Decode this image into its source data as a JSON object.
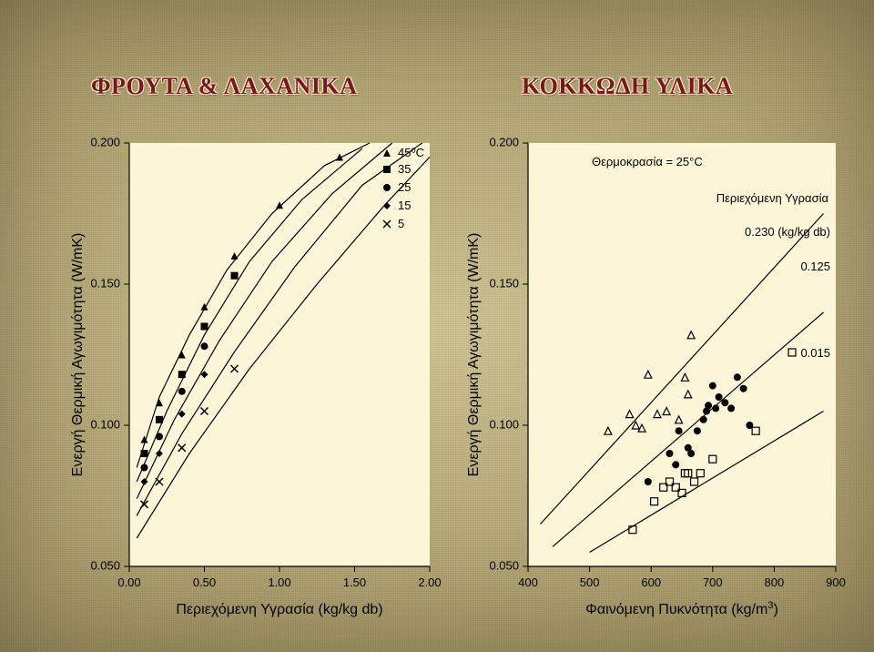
{
  "headings": {
    "left": "ΦΡΟΥΤΑ & ΛΑΧΑΝΙΚΑ",
    "right": "ΚΟΚΚΩΔΗ ΥΛΙΚΑ"
  },
  "left_chart": {
    "type": "scatter+line",
    "background_color": "#fcf5d8",
    "text_color": "#111111",
    "axis_color": "#000000",
    "ylabel": "Ενεργή Θερμική Αγωγιμότητα (W/mK)",
    "xlabel": "Περιεχόμενη Υγρασία (kg/kg db)",
    "label_fontsize": 16,
    "xlim": [
      0,
      2.0
    ],
    "ylim": [
      0.05,
      0.2
    ],
    "xticks": [
      0.0,
      0.5,
      1.0,
      1.5,
      2.0
    ],
    "xtick_labels": [
      "0.00",
      "0.50",
      "1.00",
      "1.50",
      "2.00"
    ],
    "yticks": [
      0.05,
      0.1,
      0.15,
      0.2
    ],
    "ytick_labels": [
      "0.050",
      "0.100",
      "0.150",
      "0.200"
    ],
    "tick_fontsize": 13,
    "legend": {
      "title": "45⁰C",
      "items": [
        "35",
        "25",
        "15",
        "5"
      ],
      "fontsize": 13
    },
    "series": [
      {
        "label": "45",
        "marker": "triangle",
        "color": "#000000",
        "points": [
          [
            0.1,
            0.095
          ],
          [
            0.2,
            0.108
          ],
          [
            0.35,
            0.125
          ],
          [
            0.5,
            0.142
          ],
          [
            0.7,
            0.16
          ],
          [
            1.0,
            0.178
          ],
          [
            1.4,
            0.195
          ]
        ],
        "curve": [
          [
            0.05,
            0.085
          ],
          [
            0.2,
            0.11
          ],
          [
            0.4,
            0.132
          ],
          [
            0.65,
            0.155
          ],
          [
            0.95,
            0.175
          ],
          [
            1.3,
            0.192
          ],
          [
            1.6,
            0.2
          ]
        ]
      },
      {
        "label": "35",
        "marker": "square",
        "color": "#000000",
        "points": [
          [
            0.1,
            0.09
          ],
          [
            0.2,
            0.102
          ],
          [
            0.35,
            0.118
          ],
          [
            0.5,
            0.135
          ],
          [
            0.7,
            0.153
          ]
        ],
        "curve": [
          [
            0.05,
            0.08
          ],
          [
            0.25,
            0.105
          ],
          [
            0.5,
            0.132
          ],
          [
            0.8,
            0.158
          ],
          [
            1.15,
            0.18
          ],
          [
            1.55,
            0.198
          ]
        ]
      },
      {
        "label": "25",
        "marker": "circle",
        "color": "#000000",
        "points": [
          [
            0.1,
            0.085
          ],
          [
            0.2,
            0.096
          ],
          [
            0.35,
            0.112
          ],
          [
            0.5,
            0.128
          ]
        ],
        "curve": [
          [
            0.05,
            0.074
          ],
          [
            0.3,
            0.102
          ],
          [
            0.6,
            0.13
          ],
          [
            0.95,
            0.158
          ],
          [
            1.35,
            0.182
          ],
          [
            1.75,
            0.2
          ]
        ]
      },
      {
        "label": "15",
        "marker": "diamond",
        "color": "#000000",
        "points": [
          [
            0.1,
            0.08
          ],
          [
            0.2,
            0.09
          ],
          [
            0.35,
            0.104
          ],
          [
            0.5,
            0.118
          ]
        ],
        "curve": [
          [
            0.05,
            0.068
          ],
          [
            0.35,
            0.097
          ],
          [
            0.7,
            0.126
          ],
          [
            1.1,
            0.156
          ],
          [
            1.55,
            0.185
          ],
          [
            1.95,
            0.2
          ]
        ]
      },
      {
        "label": "5",
        "marker": "x",
        "color": "#000000",
        "points": [
          [
            0.1,
            0.072
          ],
          [
            0.2,
            0.08
          ],
          [
            0.35,
            0.092
          ],
          [
            0.5,
            0.105
          ],
          [
            0.7,
            0.12
          ]
        ],
        "curve": [
          [
            0.05,
            0.06
          ],
          [
            0.4,
            0.09
          ],
          [
            0.8,
            0.12
          ],
          [
            1.25,
            0.15
          ],
          [
            1.7,
            0.178
          ],
          [
            2.0,
            0.195
          ]
        ]
      }
    ]
  },
  "right_chart": {
    "type": "scatter+line",
    "background_color": "#fcf5d8",
    "text_color": "#111111",
    "axis_color": "#000000",
    "ylabel": "Ενεργή Θερμική Αγωγιμότητα (W/mK)",
    "xlabel": "Φαινόμενη Πυκνότητα (kg/m³)",
    "temp_label": "Θερμοκρασία = 25°C",
    "moisture_label": "Περιεχόμενη Υγρασία",
    "label_fontsize": 16,
    "tick_fontsize": 13,
    "xlim": [
      400,
      900
    ],
    "ylim": [
      0.05,
      0.2
    ],
    "xticks": [
      400,
      500,
      600,
      700,
      800,
      900
    ],
    "xtick_labels": [
      "400",
      "500",
      "600",
      "700",
      "800",
      "900"
    ],
    "yticks": [
      0.05,
      0.1,
      0.15,
      0.2
    ],
    "ytick_labels": [
      "0.050",
      "0.100",
      "0.150",
      "0.200"
    ],
    "trend_lines": [
      {
        "label": "0.230 (kg/kg db)",
        "p1": [
          420,
          0.065
        ],
        "p2": [
          880,
          0.175
        ],
        "color": "#000000"
      },
      {
        "label": "0.125",
        "p1": [
          440,
          0.057
        ],
        "p2": [
          880,
          0.14
        ],
        "color": "#000000"
      },
      {
        "label": "0.015",
        "p1": [
          500,
          0.055
        ],
        "p2": [
          880,
          0.105
        ],
        "color": "#000000"
      }
    ],
    "scatter": [
      {
        "marker": "triangle_open",
        "color": "#000000",
        "points": [
          [
            530,
            0.098
          ],
          [
            565,
            0.104
          ],
          [
            575,
            0.1
          ],
          [
            585,
            0.099
          ],
          [
            595,
            0.118
          ],
          [
            610,
            0.104
          ],
          [
            625,
            0.105
          ],
          [
            645,
            0.102
          ],
          [
            655,
            0.117
          ],
          [
            660,
            0.111
          ],
          [
            665,
            0.132
          ]
        ]
      },
      {
        "marker": "circle_fill",
        "color": "#000000",
        "points": [
          [
            595,
            0.08
          ],
          [
            630,
            0.09
          ],
          [
            640,
            0.086
          ],
          [
            645,
            0.098
          ],
          [
            660,
            0.092
          ],
          [
            665,
            0.09
          ],
          [
            675,
            0.098
          ],
          [
            685,
            0.102
          ],
          [
            690,
            0.105
          ],
          [
            693,
            0.107
          ],
          [
            700,
            0.114
          ],
          [
            705,
            0.106
          ],
          [
            710,
            0.11
          ],
          [
            720,
            0.108
          ],
          [
            730,
            0.106
          ],
          [
            740,
            0.117
          ],
          [
            750,
            0.113
          ],
          [
            760,
            0.1
          ]
        ]
      },
      {
        "marker": "square_open",
        "color": "#000000",
        "points": [
          [
            570,
            0.063
          ],
          [
            605,
            0.073
          ],
          [
            620,
            0.078
          ],
          [
            630,
            0.08
          ],
          [
            640,
            0.078
          ],
          [
            650,
            0.076
          ],
          [
            655,
            0.083
          ],
          [
            660,
            0.083
          ],
          [
            670,
            0.08
          ],
          [
            680,
            0.083
          ],
          [
            700,
            0.088
          ],
          [
            770,
            0.098
          ]
        ]
      }
    ]
  }
}
